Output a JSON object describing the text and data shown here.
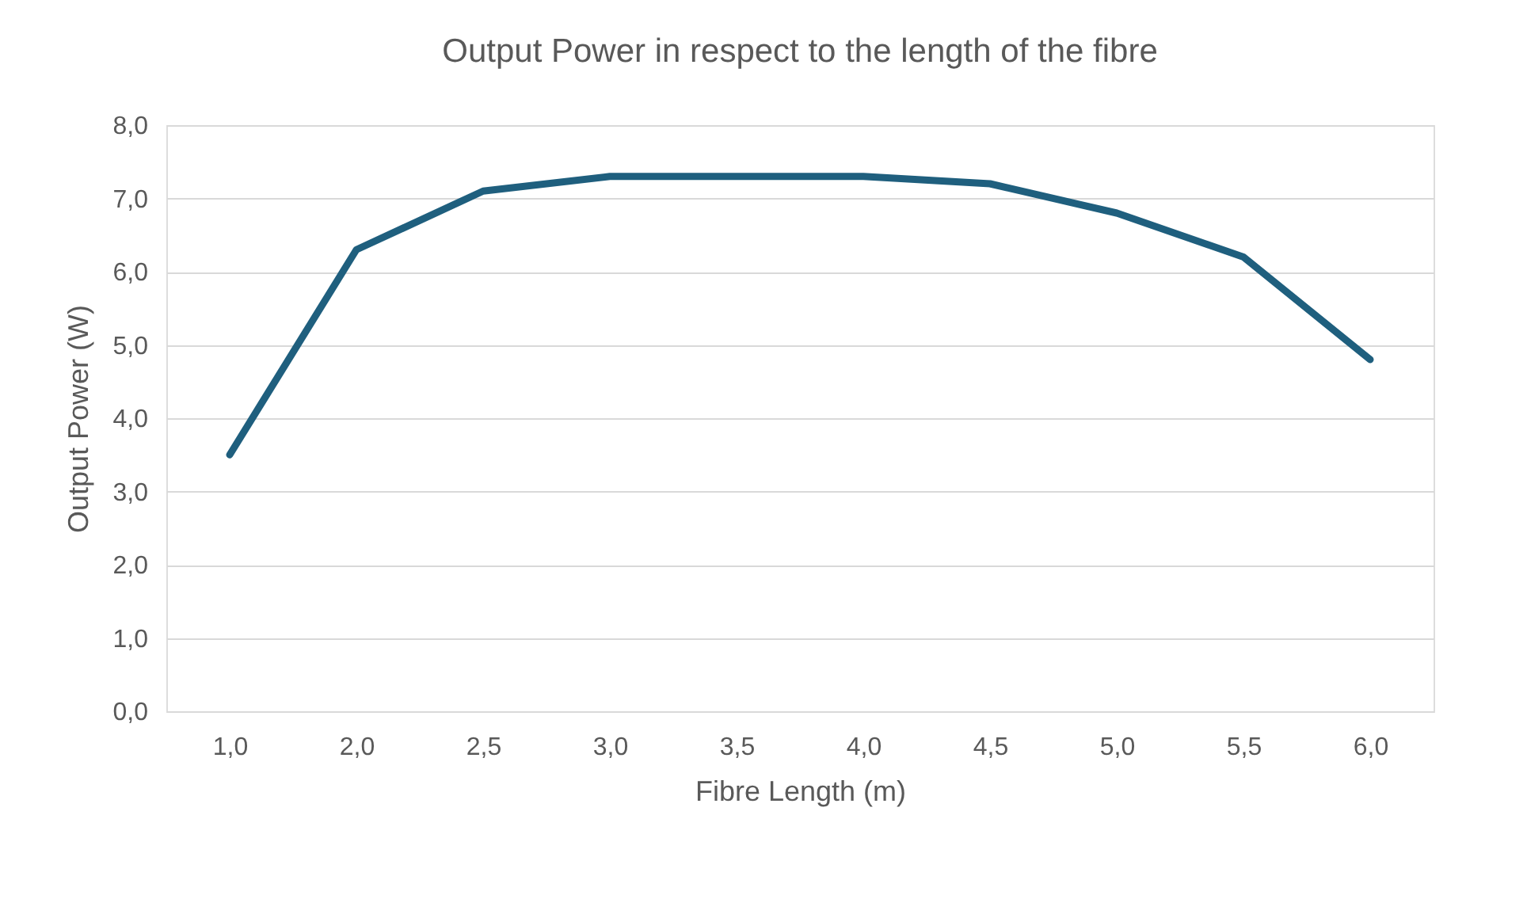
{
  "chart_data": {
    "type": "line",
    "title": "Output Power in respect to the length of the fibre",
    "xlabel": "Fibre Length (m)",
    "ylabel": "Output Power (W)",
    "categories": [
      "1,0",
      "2,0",
      "2,5",
      "3,0",
      "3,5",
      "4,0",
      "4,5",
      "5,0",
      "5,5",
      "6,0"
    ],
    "series": [
      {
        "color": "#1f5f7e",
        "values": [
          3.5,
          6.3,
          7.1,
          7.3,
          7.3,
          7.3,
          7.2,
          6.8,
          6.2,
          4.8
        ]
      }
    ],
    "ylim": [
      0,
      8
    ],
    "yticks": [
      {
        "value": 0,
        "label": "0,0"
      },
      {
        "value": 1,
        "label": "1,0"
      },
      {
        "value": 2,
        "label": "2,0"
      },
      {
        "value": 3,
        "label": "3,0"
      },
      {
        "value": 4,
        "label": "4,0"
      },
      {
        "value": 5,
        "label": "5,0"
      },
      {
        "value": 6,
        "label": "6,0"
      },
      {
        "value": 7,
        "label": "7,0"
      },
      {
        "value": 8,
        "label": "8,0"
      }
    ],
    "grid": "y",
    "marker": "none",
    "line_style": "solid"
  }
}
